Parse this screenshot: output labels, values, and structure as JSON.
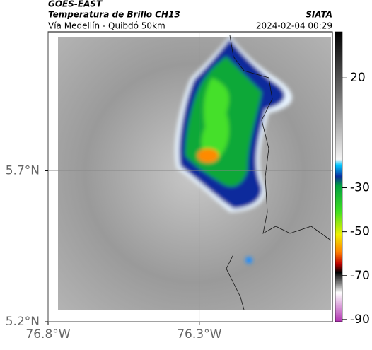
{
  "header": {
    "title": "GOES-EAST",
    "subtitle": "Temperatura de Brillo CH13",
    "region": "Vía Medellín - Quibdó 50km",
    "source": "SIATA",
    "timestamp": "2024-02-04 00:29"
  },
  "map": {
    "xlim": [
      -76.8,
      -75.86
    ],
    "ylim": [
      5.2,
      6.16
    ],
    "xticks": [
      {
        "value": -76.8,
        "label": "76.8°W"
      },
      {
        "value": -76.3,
        "label": "76.3°W"
      }
    ],
    "yticks": [
      {
        "value": 5.7,
        "label": "5.7°N"
      },
      {
        "value": 5.2,
        "label": "5.2°N"
      }
    ]
  },
  "colorbar": {
    "lim": [
      41,
      -91
    ],
    "ticks": [
      20,
      -30,
      -50,
      -70,
      -90
    ]
  }
}
